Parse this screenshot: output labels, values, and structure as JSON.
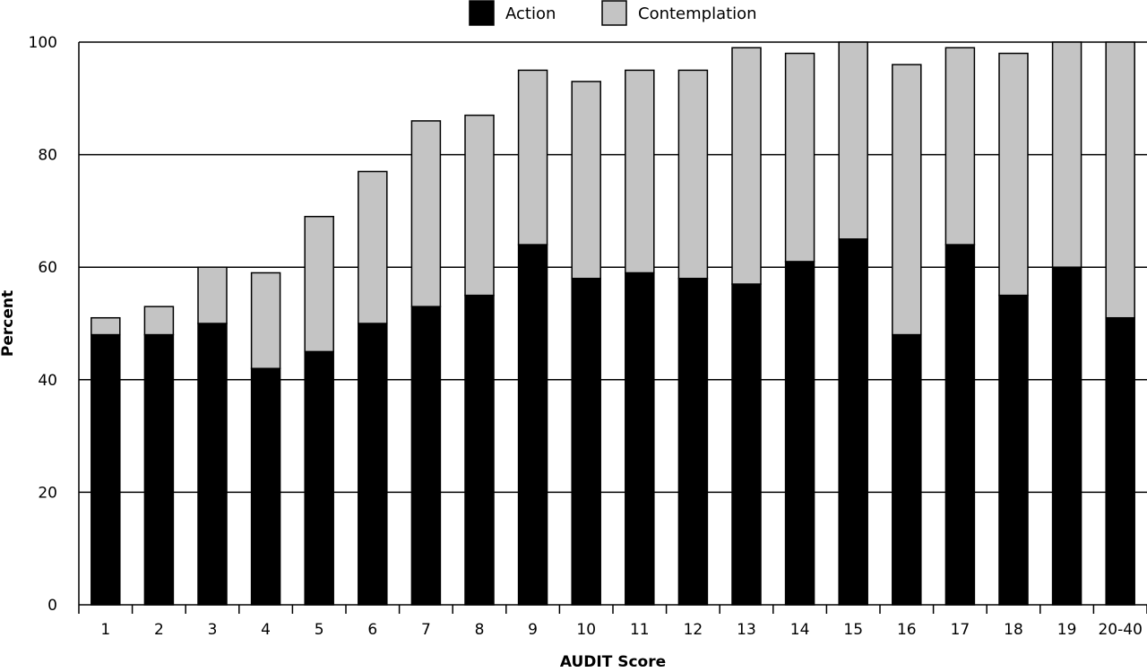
{
  "chart_data": {
    "type": "bar",
    "stacked": true,
    "xlabel": "AUDIT Score",
    "ylabel": "Percent",
    "ylim": [
      0,
      100
    ],
    "yticks": [
      0,
      20,
      40,
      60,
      80,
      100
    ],
    "grid": "horizontal",
    "legend_position": "top-center",
    "categories": [
      "1",
      "2",
      "3",
      "4",
      "5",
      "6",
      "7",
      "8",
      "9",
      "10",
      "11",
      "12",
      "13",
      "14",
      "15",
      "16",
      "17",
      "18",
      "19",
      "20-40"
    ],
    "series": [
      {
        "name": "Action",
        "color": "#000000",
        "values": [
          48,
          48,
          50,
          42,
          45,
          50,
          53,
          55,
          64,
          58,
          59,
          58,
          57,
          61,
          65,
          48,
          64,
          55,
          60,
          51
        ]
      },
      {
        "name": "Contemplation",
        "color": "#c4c4c4",
        "values": [
          3,
          5,
          10,
          17,
          24,
          27,
          33,
          32,
          31,
          35,
          36,
          37,
          42,
          37,
          35,
          48,
          35,
          43,
          40,
          49
        ]
      }
    ]
  }
}
